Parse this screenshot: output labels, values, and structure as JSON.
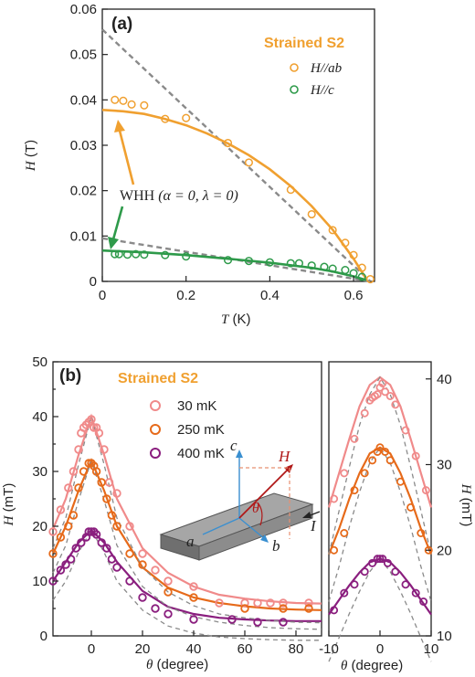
{
  "chart_data": [
    {
      "type": "scatter",
      "panel_label": "(a)",
      "sample_label": "Strained S2",
      "xlabel": "T",
      "xunit": " (K)",
      "ylabel": "H",
      "yunit": " (T)",
      "xlim": [
        0,
        0.65
      ],
      "ylim": [
        0,
        0.06
      ],
      "xticks": [
        "0",
        "0.2",
        "0.4",
        "0.6"
      ],
      "yticks": [
        "0",
        "0.01",
        "0.02",
        "0.03",
        "0.04",
        "0.05",
        "0.06"
      ],
      "annotation": "WHH",
      "annotation_params": "(α = 0,  λ = 0)",
      "series": [
        {
          "name": "H//ab",
          "color": "#f0a030",
          "x": [
            0.03,
            0.05,
            0.07,
            0.1,
            0.15,
            0.2,
            0.3,
            0.35,
            0.45,
            0.5,
            0.55,
            0.58,
            0.6,
            0.62,
            0.64
          ],
          "y": [
            0.04,
            0.0398,
            0.039,
            0.0388,
            0.0358,
            0.036,
            0.0305,
            0.0262,
            0.0202,
            0.0148,
            0.0113,
            0.0085,
            0.0058,
            0.003,
            0.0005
          ],
          "fit_x": [
            0,
            0.05,
            0.1,
            0.15,
            0.2,
            0.25,
            0.3,
            0.35,
            0.4,
            0.45,
            0.5,
            0.55,
            0.6,
            0.63
          ],
          "fit_y": [
            0.0378,
            0.0375,
            0.0369,
            0.0358,
            0.0344,
            0.0326,
            0.0304,
            0.0278,
            0.0247,
            0.021,
            0.0166,
            0.0114,
            0.005,
            0.0006
          ]
        },
        {
          "name": "H//c",
          "color": "#2e9a4a",
          "x": [
            0.03,
            0.04,
            0.06,
            0.08,
            0.1,
            0.15,
            0.2,
            0.3,
            0.35,
            0.4,
            0.45,
            0.47,
            0.5,
            0.53,
            0.55,
            0.58,
            0.6,
            0.62
          ],
          "y": [
            0.006,
            0.006,
            0.0059,
            0.006,
            0.0059,
            0.0058,
            0.0055,
            0.0047,
            0.0045,
            0.0042,
            0.004,
            0.004,
            0.0035,
            0.0032,
            0.0028,
            0.0025,
            0.0018,
            0.001
          ],
          "fit_x": [
            0,
            0.1,
            0.2,
            0.3,
            0.4,
            0.5,
            0.55,
            0.6,
            0.63
          ],
          "fit_y": [
            0.0068,
            0.0064,
            0.0058,
            0.005,
            0.0041,
            0.003,
            0.0022,
            0.0011,
            0.0003
          ]
        }
      ],
      "dashed_lines": [
        {
          "x": [
            0,
            0.64
          ],
          "y": [
            0.0555,
            0.0
          ]
        },
        {
          "x": [
            0,
            0.64
          ],
          "y": [
            0.0095,
            0.0
          ]
        }
      ]
    },
    {
      "type": "scatter",
      "panel_label": "(b)",
      "sample_label": "Strained S2",
      "xlabel": "θ",
      "xunit": " (degree)",
      "ylabel": "H",
      "yunit": " (mT)",
      "xlim": [
        -15,
        90
      ],
      "ylim": [
        0,
        50
      ],
      "xticks": [
        "0",
        "20",
        "40",
        "60",
        "80"
      ],
      "yticks": [
        "0",
        "5",
        "10",
        "15",
        "20",
        "25",
        "30",
        "35",
        "40",
        "45",
        "50"
      ],
      "series": [
        {
          "name": "30 mK",
          "color": "#f08a8a",
          "x": [
            -15,
            -12,
            -9,
            -7,
            -5,
            -4,
            -3,
            -2,
            -1,
            0,
            1,
            2,
            3,
            5,
            7,
            10,
            15,
            20,
            25,
            30,
            40,
            50,
            60,
            65,
            70,
            75,
            85
          ],
          "y": [
            19,
            23,
            27,
            30,
            34,
            37,
            38,
            38.5,
            39,
            39.5,
            38,
            38,
            37,
            34,
            28,
            26,
            20,
            15,
            12,
            10,
            9,
            6,
            6,
            6,
            6,
            6,
            6
          ],
          "fit_x": [
            -15,
            -10,
            -5,
            0,
            5,
            10,
            20,
            30,
            40,
            50,
            60,
            70,
            80,
            90
          ],
          "fit_y": [
            19.5,
            25,
            33,
            40,
            33,
            25,
            16,
            11.5,
            9,
            7.5,
            6.8,
            6.3,
            6,
            5.9
          ]
        },
        {
          "name": "250 mK",
          "color": "#e66a1a",
          "x": [
            -15,
            -12,
            -9,
            -7,
            -5,
            -3,
            -1,
            0,
            1,
            2,
            4,
            6,
            8,
            10,
            15,
            20,
            30,
            40,
            60,
            75,
            85
          ],
          "y": [
            15,
            18,
            20,
            22,
            27,
            30,
            31.5,
            31.5,
            31,
            30,
            28,
            25,
            22,
            20,
            15,
            13,
            8,
            7,
            5,
            5,
            5
          ],
          "fit_x": [
            -15,
            -10,
            -5,
            0,
            5,
            10,
            20,
            30,
            40,
            50,
            60,
            70,
            80,
            90
          ],
          "fit_y": [
            15,
            20,
            26.5,
            32,
            26.5,
            20,
            12.5,
            8.8,
            7,
            6,
            5.4,
            5,
            4.8,
            4.7
          ]
        },
        {
          "name": "400 mK",
          "color": "#8a1e7e",
          "x": [
            -15,
            -12,
            -10,
            -8,
            -6,
            -4,
            -2,
            -1,
            0,
            1,
            2,
            4,
            6,
            8,
            10,
            15,
            20,
            25,
            30,
            40,
            55,
            65,
            75
          ],
          "y": [
            10,
            12,
            13,
            14,
            16,
            17,
            18,
            19,
            19,
            19,
            18.5,
            17,
            16,
            14,
            12.5,
            10,
            7,
            5,
            4,
            3,
            3,
            2.5,
            2.5
          ],
          "fit_x": [
            -15,
            -10,
            -5,
            0,
            5,
            10,
            20,
            30,
            40,
            50,
            60,
            70,
            80,
            90
          ],
          "fit_y": [
            10,
            13.5,
            17,
            19.3,
            17,
            13.5,
            8.2,
            5.3,
            4,
            3.3,
            3,
            2.8,
            2.7,
            2.7
          ]
        }
      ],
      "inset_labels": {
        "c": "c",
        "H": "H",
        "theta": "θ",
        "a": "a",
        "b": "b",
        "I": "I"
      }
    },
    {
      "type": "scatter",
      "xlabel": "θ",
      "xunit": " (degree)",
      "ylabel": "H",
      "yunit": " (mT)",
      "xlim": [
        -10,
        10
      ],
      "ylim": [
        10,
        42
      ],
      "xticks": [
        "-10",
        "0",
        "10"
      ],
      "yticks": [
        "10",
        "20",
        "30",
        "40"
      ],
      "series": [
        {
          "name": "30 mK",
          "color": "#f08a8a",
          "x": [
            -9,
            -7,
            -5,
            -3,
            -2,
            -1.5,
            -1,
            -0.5,
            0,
            0.5,
            1,
            2,
            3,
            5,
            7,
            9
          ],
          "y": [
            26,
            29,
            33,
            36,
            37.5,
            37.8,
            38,
            38.2,
            39,
            39.5,
            38.5,
            38,
            37,
            34,
            31,
            27
          ],
          "fit_x": [
            -10,
            -8,
            -6,
            -4,
            -2,
            0,
            2,
            4,
            6,
            8,
            10
          ],
          "fit_y": [
            25,
            29,
            33,
            36.8,
            39.3,
            40.2,
            39.3,
            36.8,
            33,
            29,
            25
          ]
        },
        {
          "name": "250 mK",
          "color": "#e66a1a",
          "x": [
            -9,
            -7,
            -5,
            -3,
            -1.5,
            -0.5,
            0,
            1,
            2,
            4,
            6,
            8,
            9.5
          ],
          "y": [
            20,
            22,
            27,
            29,
            30.5,
            31.5,
            32,
            31.5,
            30.5,
            28,
            25,
            22,
            20
          ],
          "fit_x": [
            -10,
            -8,
            -6,
            -4,
            -2,
            0,
            2,
            4,
            6,
            8,
            10
          ],
          "fit_y": [
            19.5,
            22.5,
            26,
            29,
            31.3,
            32,
            31.3,
            29,
            26,
            22.5,
            19.5
          ]
        },
        {
          "name": "400 mK",
          "color": "#8a1e7e",
          "x": [
            -9,
            -7,
            -5,
            -3,
            -1.5,
            -0.5,
            0,
            0.5,
            1.5,
            3,
            5,
            7,
            8.5
          ],
          "y": [
            13,
            15,
            16,
            17.5,
            18.5,
            19,
            19,
            19,
            18.5,
            17.5,
            16,
            15,
            14
          ],
          "fit_x": [
            -10,
            -8,
            -6,
            -4,
            -2,
            0,
            2,
            4,
            6,
            8,
            10
          ],
          "fit_y": [
            12.5,
            14.2,
            15.9,
            17.4,
            18.6,
            19,
            18.6,
            17.4,
            15.9,
            14.2,
            12.5
          ]
        }
      ]
    }
  ],
  "colors": {
    "ab": "#f0a030",
    "c": "#2e9a4a",
    "mk30": "#f08a8a",
    "mk250": "#e66a1a",
    "mk400": "#8a1e7e",
    "dash": "#8a8a8a"
  }
}
